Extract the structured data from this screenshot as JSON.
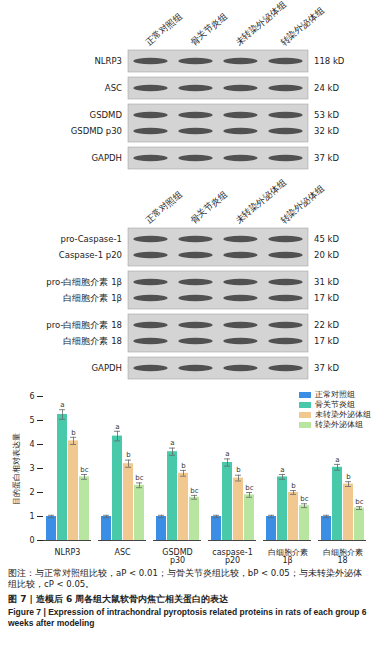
{
  "chart_data": {
    "type": "bar",
    "categories": [
      "NLRP3",
      "ASC",
      "GSDMD p30",
      "caspase-1 p20",
      "白细胞介素 1β",
      "白细胞介素 18"
    ],
    "series": [
      {
        "name": "正常对照组",
        "color": "#3a8ee6",
        "values": [
          1.0,
          1.0,
          1.0,
          1.0,
          1.0,
          1.0
        ],
        "errors": [
          0.05,
          0.05,
          0.05,
          0.05,
          0.05,
          0.05
        ],
        "annotations": [
          null,
          null,
          null,
          null,
          null,
          null
        ]
      },
      {
        "name": "骨关节炎组",
        "color": "#48c9a9",
        "values": [
          5.25,
          4.35,
          3.7,
          3.25,
          2.65,
          3.05
        ],
        "errors": [
          0.2,
          0.2,
          0.15,
          0.15,
          0.1,
          0.12
        ],
        "annotations": [
          "a",
          "a",
          "a",
          "a",
          "a",
          "a"
        ]
      },
      {
        "name": "未转染外泌体组",
        "color": "#f0c890",
        "values": [
          4.15,
          3.2,
          2.8,
          2.6,
          2.0,
          2.35
        ],
        "errors": [
          0.15,
          0.15,
          0.12,
          0.12,
          0.08,
          0.1
        ],
        "annotations": [
          "b",
          "b",
          "b",
          "b",
          "b",
          "b"
        ]
      },
      {
        "name": "转染外泌体组",
        "color": "#b8e6a0",
        "values": [
          2.65,
          2.3,
          1.8,
          1.9,
          1.45,
          1.35
        ],
        "errors": [
          0.1,
          0.1,
          0.08,
          0.1,
          0.08,
          0.06
        ],
        "annotations": [
          "bc",
          "bc",
          "bc",
          "bc",
          "bc",
          "bc"
        ]
      }
    ],
    "ylabel": "目的蛋白相对表达量",
    "ylim": [
      0,
      6
    ],
    "yticks": [
      0,
      1,
      2,
      3,
      4,
      5,
      6
    ],
    "legend": "top-right"
  },
  "blots": [
    {
      "lanes": [
        "正常对照组",
        "骨关节炎组",
        "未转染外泌体组",
        "转染外泌体组"
      ],
      "panels": [
        {
          "bands": [
            {
              "label": "NLRP3",
              "size": "118 kD"
            }
          ]
        },
        {
          "bands": [
            {
              "label": "ASC",
              "size": "24 kD"
            }
          ]
        },
        {
          "bands": [
            {
              "label": "GSDMD",
              "size": "53 kD"
            },
            {
              "label": "GSDMD p30",
              "size": "32 kD"
            }
          ]
        },
        {
          "bands": [
            {
              "label": "GAPDH",
              "size": "37 kD"
            }
          ]
        }
      ]
    },
    {
      "lanes": [
        "正常对照组",
        "骨关节炎组",
        "未转染外泌体组",
        "转染外泌体组"
      ],
      "panels": [
        {
          "bands": [
            {
              "label": "pro-Caspase-1",
              "size": "45 kD"
            },
            {
              "label": "Caspase-1 p20",
              "size": "20 kD"
            }
          ]
        },
        {
          "bands": [
            {
              "label": "pro-白细胞介素 1β",
              "size": "31 kD"
            },
            {
              "label": "白细胞介素 1β",
              "size": "17 kD"
            }
          ]
        },
        {
          "bands": [
            {
              "label": "pro-白细胞介素 18",
              "size": "22 kD"
            },
            {
              "label": "白细胞介素 18",
              "size": "17 kD"
            }
          ]
        },
        {
          "bands": [
            {
              "label": "GAPDH",
              "size": "37 kD"
            }
          ]
        }
      ]
    }
  ],
  "note": "图注：与正常对照组比较，aP < 0.01；与骨关节炎组比较，bP < 0.05；与未转染外泌体组比较，cP < 0.05。",
  "caption_zh": "图 7 | 造模后 6 周各组大鼠软骨内焦亡相关蛋白的表达",
  "caption_en": "Figure 7 | Expression of intrachondral pyroptosis related proteins in rats of each group 6 weeks after modeling"
}
